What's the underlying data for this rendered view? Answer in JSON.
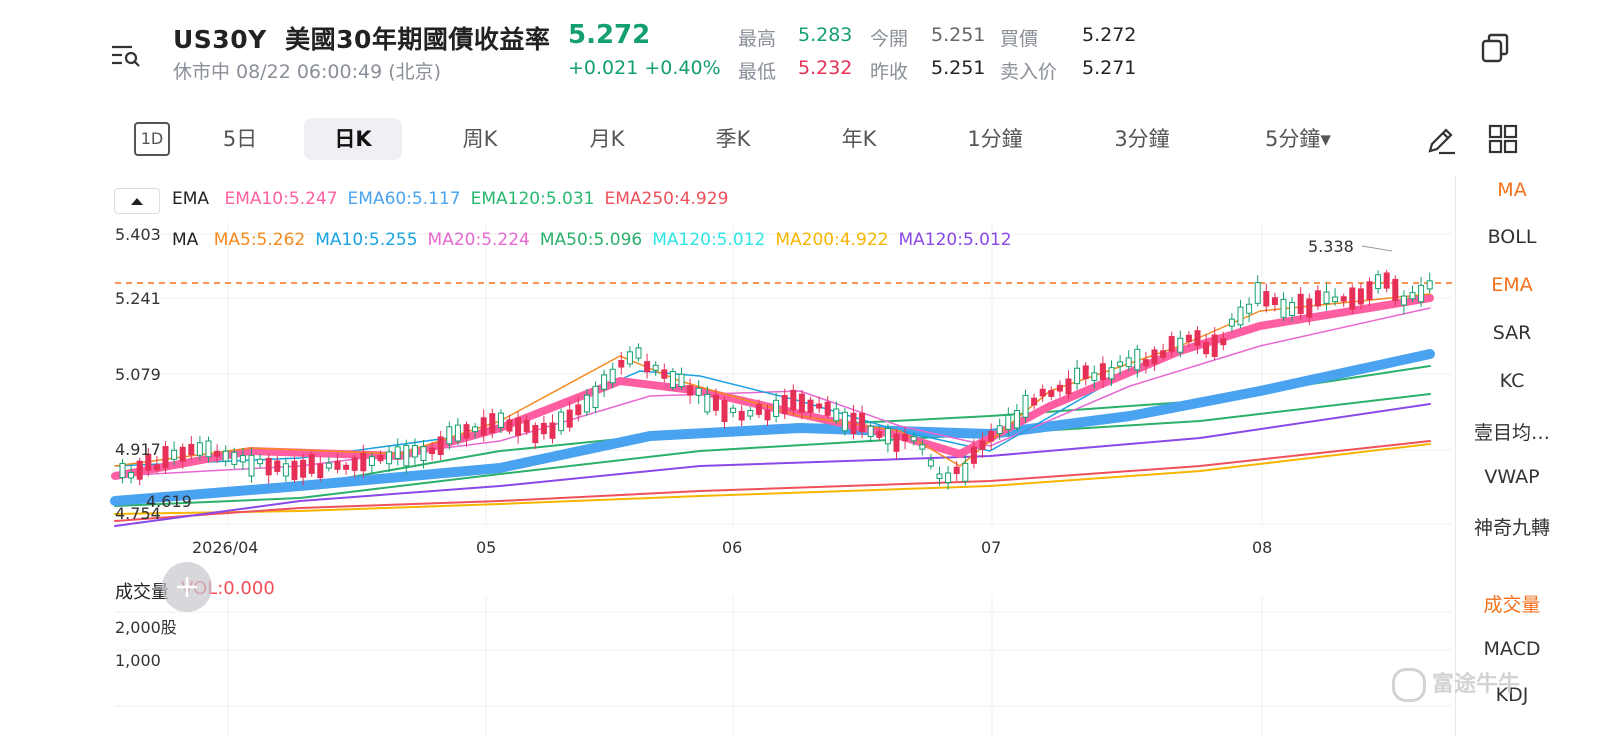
{
  "header": {
    "symbol": "US30Y",
    "name": "美國30年期國債收益率",
    "price": "5.272",
    "status": "休市中 08/22 06:00:49 (北京)",
    "change": "+0.021 +0.40%",
    "stats": [
      {
        "label": "最高",
        "value": "5.283",
        "color": "green"
      },
      {
        "label": "今開",
        "value": "5.251",
        "color": "gray"
      },
      {
        "label": "買價",
        "value": "5.272",
        "color": "dark"
      },
      {
        "label": "最低",
        "value": "5.232",
        "color": "red"
      },
      {
        "label": "昨收",
        "value": "5.251",
        "color": "dark"
      },
      {
        "label": "卖入价",
        "value": "5.271",
        "color": "dark"
      }
    ]
  },
  "tabs": [
    "1D",
    "5日",
    "日K",
    "周K",
    "月K",
    "季K",
    "年K",
    "1分鐘",
    "3分鐘",
    "5分鐘▾"
  ],
  "active_tab": "日K",
  "sidebar": {
    "top": [
      "MA",
      "BOLL",
      "EMA",
      "SAR",
      "KC",
      "壹目均…",
      "VWAP",
      "神奇九轉"
    ],
    "bottom": [
      "成交量",
      "MACD",
      "KDJ"
    ]
  },
  "ema_legend": {
    "label": "EMA",
    "items": [
      {
        "text": "EMA10:5.247",
        "color": "#ff5fa2"
      },
      {
        "text": "EMA60:5.117",
        "color": "#4aa3f0"
      },
      {
        "text": "EMA120:5.031",
        "color": "#27b86f"
      },
      {
        "text": "EMA250:4.929",
        "color": "#f0505a"
      }
    ]
  },
  "ma_legend": {
    "label": "MA",
    "items": [
      {
        "text": "MA5:5.262",
        "color": "#f5891f"
      },
      {
        "text": "MA10:5.255",
        "color": "#1aa3e0"
      },
      {
        "text": "MA20:5.224",
        "color": "#e768d0"
      },
      {
        "text": "MA50:5.096",
        "color": "#2bb06a"
      },
      {
        "text": "MA120:5.012",
        "color": "#2ee6e6"
      },
      {
        "text": "MA200:4.922",
        "color": "#f7b500"
      },
      {
        "text": "MA120:5.012",
        "color": "#8a48e8"
      }
    ]
  },
  "chart_data": {
    "type": "candlestick",
    "y_ticks": [
      "5.403",
      "5.241",
      "5.079",
      "4.917",
      "4.754"
    ],
    "x_ticks": [
      "2026/04",
      "05",
      "06",
      "07",
      "08"
    ],
    "high_label": "5.338",
    "low_label": "4.619",
    "current_line": 5.272,
    "ylim": [
      4.754,
      5.403
    ]
  },
  "volume": {
    "title": "成交量",
    "vol": "VOL:0.000",
    "ticks": [
      "2,000股",
      "1,000"
    ]
  },
  "watermark": "富途牛牛",
  "colors": {
    "up": "#14a06e",
    "down": "#e63057",
    "accent": "#f5711d"
  }
}
